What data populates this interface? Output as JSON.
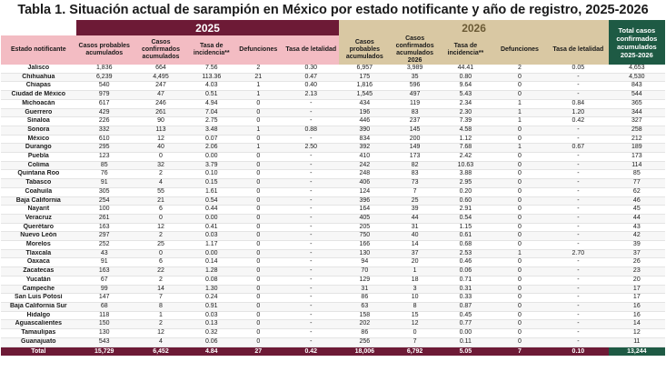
{
  "title": "Tabla 1. Situación actual de sarampión en México por estado notificante y año de registro, 2025-2026",
  "years": {
    "y2025": "2025",
    "y2026": "2026"
  },
  "total_header": "Total casos confirmados acumulados 2025-2026",
  "headers": {
    "state": "Estado notificante",
    "y2025": [
      "Casos probables acumulados",
      "Casos confirmados acumulados",
      "Tasa de incidencia**",
      "Defunciones",
      "Tasa de letalidad"
    ],
    "y2026": [
      "Casos probables acumulados",
      "Casos confirmados acumulados 2026",
      "Tasa de incidencia**",
      "Defunciones",
      "Tasa de letalidad"
    ]
  },
  "rows": [
    [
      "Jalisco",
      "1,836",
      "664",
      "7.56",
      "2",
      "0.30",
      "6,957",
      "3,989",
      "44.41",
      "2",
      "0.05",
      "4,653"
    ],
    [
      "Chihuahua",
      "6,239",
      "4,495",
      "113.36",
      "21",
      "0.47",
      "175",
      "35",
      "0.80",
      "0",
      "-",
      "4,530"
    ],
    [
      "Chiapas",
      "540",
      "247",
      "4.03",
      "1",
      "0.40",
      "1,816",
      "596",
      "9.64",
      "0",
      "-",
      "843"
    ],
    [
      "Ciudad de México",
      "979",
      "47",
      "0.51",
      "1",
      "2.13",
      "1,545",
      "497",
      "5.43",
      "0",
      "-",
      "544"
    ],
    [
      "Michoacán",
      "617",
      "246",
      "4.94",
      "0",
      "-",
      "434",
      "119",
      "2.34",
      "1",
      "0.84",
      "365"
    ],
    [
      "Guerrero",
      "429",
      "261",
      "7.04",
      "0",
      "-",
      "196",
      "83",
      "2.30",
      "1",
      "1.20",
      "344"
    ],
    [
      "Sinaloa",
      "226",
      "90",
      "2.75",
      "0",
      "-",
      "446",
      "237",
      "7.39",
      "1",
      "0.42",
      "327"
    ],
    [
      "Sonora",
      "332",
      "113",
      "3.48",
      "1",
      "0.88",
      "390",
      "145",
      "4.58",
      "0",
      "-",
      "258"
    ],
    [
      "México",
      "610",
      "12",
      "0.07",
      "0",
      "-",
      "834",
      "200",
      "1.12",
      "0",
      "-",
      "212"
    ],
    [
      "Durango",
      "295",
      "40",
      "2.06",
      "1",
      "2.50",
      "392",
      "149",
      "7.68",
      "1",
      "0.67",
      "189"
    ],
    [
      "Puebla",
      "123",
      "0",
      "0.00",
      "0",
      "-",
      "410",
      "173",
      "2.42",
      "0",
      "-",
      "173"
    ],
    [
      "Colima",
      "85",
      "32",
      "3.79",
      "0",
      "-",
      "242",
      "82",
      "10.63",
      "0",
      "-",
      "114"
    ],
    [
      "Quintana Roo",
      "76",
      "2",
      "0.10",
      "0",
      "-",
      "248",
      "83",
      "3.88",
      "0",
      "-",
      "85"
    ],
    [
      "Tabasco",
      "91",
      "4",
      "0.15",
      "0",
      "-",
      "406",
      "73",
      "2.95",
      "0",
      "-",
      "77"
    ],
    [
      "Coahuila",
      "305",
      "55",
      "1.61",
      "0",
      "-",
      "124",
      "7",
      "0.20",
      "0",
      "-",
      "62"
    ],
    [
      "Baja California",
      "254",
      "21",
      "0.54",
      "0",
      "-",
      "396",
      "25",
      "0.60",
      "0",
      "-",
      "46"
    ],
    [
      "Nayarit",
      "100",
      "6",
      "0.44",
      "0",
      "-",
      "164",
      "39",
      "2.91",
      "0",
      "-",
      "45"
    ],
    [
      "Veracruz",
      "261",
      "0",
      "0.00",
      "0",
      "-",
      "405",
      "44",
      "0.54",
      "0",
      "-",
      "44"
    ],
    [
      "Querétaro",
      "163",
      "12",
      "0.41",
      "0",
      "-",
      "205",
      "31",
      "1.15",
      "0",
      "-",
      "43"
    ],
    [
      "Nuevo León",
      "297",
      "2",
      "0.03",
      "0",
      "-",
      "750",
      "40",
      "0.61",
      "0",
      "-",
      "42"
    ],
    [
      "Morelos",
      "252",
      "25",
      "1.17",
      "0",
      "-",
      "166",
      "14",
      "0.68",
      "0",
      "-",
      "39"
    ],
    [
      "Tlaxcala",
      "43",
      "0",
      "0.00",
      "0",
      "-",
      "130",
      "37",
      "2.53",
      "1",
      "2.70",
      "37"
    ],
    [
      "Oaxaca",
      "91",
      "6",
      "0.14",
      "0",
      "-",
      "94",
      "20",
      "0.46",
      "0",
      "-",
      "26"
    ],
    [
      "Zacatecas",
      "163",
      "22",
      "1.28",
      "0",
      "-",
      "70",
      "1",
      "0.06",
      "0",
      "-",
      "23"
    ],
    [
      "Yucatán",
      "67",
      "2",
      "0.08",
      "0",
      "-",
      "129",
      "18",
      "0.71",
      "0",
      "-",
      "20"
    ],
    [
      "Campeche",
      "99",
      "14",
      "1.30",
      "0",
      "-",
      "31",
      "3",
      "0.31",
      "0",
      "-",
      "17"
    ],
    [
      "San Luis Potosí",
      "147",
      "7",
      "0.24",
      "0",
      "-",
      "86",
      "10",
      "0.33",
      "0",
      "-",
      "17"
    ],
    [
      "Baja California Sur",
      "68",
      "8",
      "0.91",
      "0",
      "-",
      "63",
      "8",
      "0.87",
      "0",
      "-",
      "16"
    ],
    [
      "Hidalgo",
      "118",
      "1",
      "0.03",
      "0",
      "-",
      "158",
      "15",
      "0.45",
      "0",
      "-",
      "16"
    ],
    [
      "Aguascalientes",
      "150",
      "2",
      "0.13",
      "0",
      "-",
      "202",
      "12",
      "0.77",
      "0",
      "-",
      "14"
    ],
    [
      "Tamaulipas",
      "130",
      "12",
      "0.32",
      "0",
      "-",
      "86",
      "0",
      "0.00",
      "0",
      "-",
      "12"
    ],
    [
      "Guanajuato",
      "543",
      "4",
      "0.06",
      "0",
      "-",
      "256",
      "7",
      "0.11",
      "0",
      "-",
      "11"
    ]
  ],
  "total_row": [
    "Total",
    "15,729",
    "6,452",
    "4.84",
    "27",
    "0.42",
    "18,006",
    "6,792",
    "5.05",
    "7",
    "0.10",
    "13,244"
  ],
  "colors": {
    "y2025": "#6d1a36",
    "y2026": "#d9c8a3",
    "total": "#1e5a44",
    "hdr2025": "#f3bcc3"
  }
}
